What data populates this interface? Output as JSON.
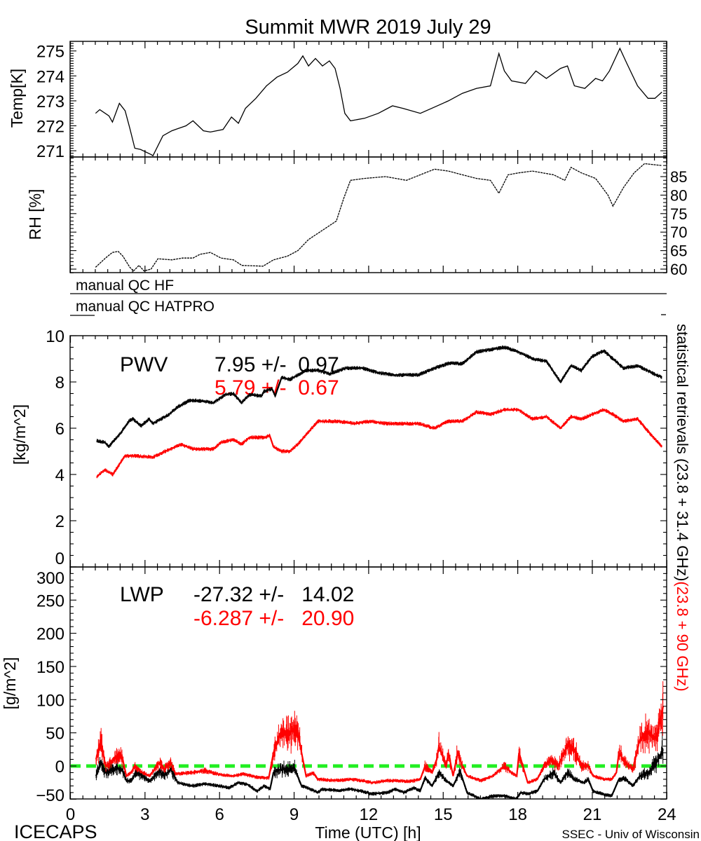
{
  "title": "Summit MWR 2019 July 29",
  "footer": {
    "left": "ICECAPS",
    "center": "Time (UTC) [h]",
    "right": "SSEC - Univ of Wisconsin"
  },
  "qc": {
    "hf": "manual QC HF",
    "hatpro": "manual QC HATPRO"
  },
  "right_label": {
    "black": "statistical retrievals (23.8 + 31.4 GHz)",
    "red": "(23.8 + 90 GHz)"
  },
  "colors": {
    "primary": "#000000",
    "secondary": "#ff0000",
    "zero_line": "#22ee22"
  },
  "x_axis": {
    "label": "Time (UTC) [h]",
    "range": [
      0,
      24
    ],
    "ticks": [
      0,
      3,
      6,
      9,
      12,
      15,
      18,
      21,
      24
    ]
  },
  "chart_data": [
    {
      "id": "temp",
      "type": "line",
      "ylabel": "Temp[K]",
      "ylim": [
        270.7,
        275.35
      ],
      "yticks": [
        271,
        272,
        273,
        274,
        275
      ],
      "series": [
        {
          "name": "Temperature",
          "color": "#000000",
          "x": [
            1.01,
            1.18,
            1.55,
            1.69,
            1.97,
            2.2,
            2.39,
            2.59,
            2.82,
            3.24,
            3.32,
            3.72,
            4.08,
            4.65,
            4.93,
            5.35,
            5.63,
            6.14,
            6.48,
            6.76,
            7.04,
            7.46,
            7.89,
            8.31,
            8.73,
            9.15,
            9.35,
            9.58,
            9.86,
            10.14,
            10.42,
            10.65,
            10.85,
            11.04,
            11.27,
            11.83,
            12.39,
            12.96,
            13.38,
            14.08,
            14.65,
            15.21,
            15.77,
            16.34,
            16.9,
            17.24,
            17.46,
            17.75,
            18.31,
            18.73,
            19.15,
            19.72,
            20.0,
            20.28,
            20.7,
            21.13,
            21.41,
            21.69,
            22.11,
            22.39,
            22.82,
            23.24,
            23.52,
            23.8
          ],
          "y": [
            272.5,
            272.65,
            272.4,
            272.15,
            272.9,
            272.6,
            271.9,
            271.1,
            271.05,
            270.85,
            270.8,
            271.6,
            271.8,
            272.0,
            272.2,
            271.8,
            271.75,
            271.85,
            272.35,
            272.1,
            272.7,
            273.1,
            273.6,
            273.95,
            274.15,
            274.5,
            274.8,
            274.4,
            274.7,
            274.4,
            274.6,
            274.3,
            273.5,
            272.5,
            272.2,
            272.3,
            272.5,
            272.8,
            272.7,
            272.5,
            272.75,
            273.0,
            273.3,
            273.5,
            273.6,
            274.9,
            274.2,
            273.8,
            273.7,
            274.2,
            273.9,
            274.3,
            274.4,
            273.6,
            273.5,
            273.9,
            273.8,
            274.2,
            275.1,
            274.5,
            273.6,
            273.1,
            273.1,
            273.35
          ]
        }
      ]
    },
    {
      "id": "rh",
      "type": "line",
      "ylabel": "RH [%]",
      "ylim": [
        59,
        90.2
      ],
      "yticks": [
        60,
        65,
        70,
        75,
        80,
        85
      ],
      "series": [
        {
          "name": "Relative humidity",
          "color": "#000000",
          "x": [
            1.01,
            1.41,
            1.69,
            1.92,
            2.11,
            2.39,
            2.54,
            2.76,
            2.96,
            3.24,
            3.52,
            4.08,
            4.51,
            4.93,
            5.21,
            5.63,
            6.06,
            6.56,
            6.9,
            7.75,
            8.17,
            8.73,
            9.15,
            9.58,
            10.14,
            10.7,
            10.99,
            11.27,
            11.83,
            12.68,
            13.52,
            14.08,
            14.65,
            15.21,
            15.77,
            16.34,
            16.9,
            17.24,
            17.61,
            18.03,
            18.59,
            19.44,
            19.89,
            20.14,
            20.56,
            21.13,
            21.63,
            21.83,
            22.25,
            22.68,
            23.1,
            23.8
          ],
          "y": [
            60.5,
            63,
            64.5,
            64.8,
            63.5,
            60.5,
            59.5,
            61,
            59.5,
            60,
            62.8,
            62.5,
            63,
            63,
            64,
            64.5,
            63,
            62.5,
            61,
            60.8,
            62.5,
            63.5,
            65,
            68,
            70.5,
            73,
            79,
            84,
            84.5,
            85,
            84,
            85.5,
            87,
            86.5,
            85.5,
            84.5,
            84,
            80.5,
            85.5,
            86,
            86.5,
            85.5,
            84,
            87.5,
            86,
            84.5,
            80,
            77,
            82,
            86,
            88.5,
            88
          ]
        }
      ]
    },
    {
      "id": "pwv",
      "type": "line",
      "ylabel": "[kg/m^2]",
      "ylim": [
        0,
        10
      ],
      "yticks": [
        0,
        2,
        4,
        6,
        8,
        10
      ],
      "annotation": {
        "label": "PWV",
        "stats": [
          {
            "text": "7.95 +/-  0.97",
            "color": "#000000"
          },
          {
            "text": "5.79 +/-  0.67",
            "color": "#ff0000"
          }
        ]
      },
      "series": [
        {
          "name": "23.8 + 31.4 GHz",
          "color": "#000000",
          "x": [
            1.06,
            1.38,
            1.54,
            2.03,
            2.35,
            2.51,
            2.84,
            3.16,
            3.32,
            3.97,
            4.29,
            4.78,
            5.1,
            5.75,
            6.23,
            6.56,
            6.88,
            7.2,
            7.69,
            7.79,
            8.11,
            8.24,
            8.5,
            8.82,
            9.15,
            9.47,
            9.96,
            10.44,
            11.09,
            11.74,
            12.38,
            13.03,
            14.0,
            14.65,
            15.21,
            15.77,
            16.34,
            16.9,
            17.46,
            18.03,
            18.59,
            19.15,
            19.72,
            20.14,
            20.56,
            20.99,
            21.46,
            21.83,
            22.25,
            22.82,
            23.38,
            23.8
          ],
          "y": [
            5.45,
            5.4,
            5.2,
            5.8,
            6.3,
            6.4,
            6.1,
            6.4,
            6.2,
            6.6,
            6.9,
            7.2,
            7.2,
            7.1,
            7.45,
            7.5,
            7.1,
            7.45,
            7.4,
            7.6,
            7.7,
            7.4,
            8.2,
            8.1,
            8.3,
            8.5,
            8.5,
            8.35,
            8.6,
            8.6,
            8.4,
            8.3,
            8.3,
            8.6,
            8.8,
            8.8,
            9.3,
            9.4,
            9.5,
            9.3,
            9.0,
            8.9,
            8.0,
            8.7,
            8.5,
            9.1,
            9.35,
            9.0,
            8.6,
            8.7,
            8.4,
            8.2
          ]
        },
        {
          "name": "23.8 + 90 GHz",
          "color": "#ff0000",
          "x": [
            1.06,
            1.38,
            1.7,
            2.19,
            2.67,
            3.32,
            3.81,
            4.45,
            4.94,
            5.75,
            6.07,
            6.56,
            6.88,
            7.2,
            7.85,
            8.01,
            8.17,
            8.5,
            8.82,
            9.15,
            9.31,
            9.63,
            9.96,
            10.77,
            11.41,
            12.06,
            12.71,
            13.35,
            14.0,
            14.65,
            15.21,
            15.77,
            16.34,
            16.9,
            17.46,
            18.03,
            18.59,
            19.15,
            19.72,
            20.14,
            20.56,
            20.99,
            21.46,
            21.83,
            22.25,
            22.82,
            23.38,
            23.8
          ],
          "y": [
            3.9,
            4.2,
            4.0,
            4.8,
            4.8,
            4.75,
            5.0,
            5.3,
            5.1,
            5.1,
            5.4,
            5.5,
            5.3,
            5.6,
            5.6,
            5.7,
            5.2,
            5.0,
            5.0,
            5.3,
            5.5,
            5.9,
            6.3,
            6.3,
            6.2,
            6.3,
            6.2,
            6.2,
            6.2,
            6.0,
            6.3,
            6.3,
            6.7,
            6.6,
            6.8,
            6.8,
            6.4,
            6.5,
            6.0,
            6.5,
            6.4,
            6.6,
            6.8,
            6.6,
            6.3,
            6.4,
            5.7,
            5.2
          ]
        }
      ]
    },
    {
      "id": "lwp",
      "type": "line",
      "ylabel": "[g/m^2]",
      "ylim": [
        -50,
        300
      ],
      "yticks": [
        -50,
        0,
        50,
        100,
        150,
        200,
        250,
        300
      ],
      "reference_line": 0,
      "annotation": {
        "label": "LWP",
        "stats": [
          {
            "text": "-27.32 +/-   14.02",
            "color": "#000000"
          },
          {
            "text": "-6.287 +/-   20.90",
            "color": "#ff0000"
          }
        ]
      },
      "series": [
        {
          "name": "23.8 + 31.4 GHz",
          "color": "#000000",
          "x": [
            1.03,
            1.22,
            1.41,
            1.88,
            2.07,
            2.25,
            2.44,
            2.63,
            2.82,
            3.19,
            3.57,
            3.76,
            4.04,
            4.32,
            4.88,
            5.45,
            6.01,
            6.38,
            6.76,
            7.14,
            7.51,
            7.79,
            8.03,
            8.17,
            8.45,
            8.83,
            9.01,
            9.3,
            9.48,
            9.95,
            10.14,
            10.8,
            11.27,
            11.74,
            12.11,
            12.77,
            13.05,
            13.43,
            13.8,
            14.08,
            14.27,
            14.55,
            14.83,
            15.12,
            15.4,
            15.68,
            15.96,
            16.52,
            16.99,
            17.46,
            17.93,
            18.12,
            18.4,
            18.78,
            19.06,
            19.44,
            19.72,
            20.0,
            20.28,
            20.66,
            20.84,
            21.03,
            21.5,
            21.78,
            22.07,
            22.35,
            22.63,
            22.91,
            23.28,
            23.57,
            23.85
          ],
          "y": [
            -15,
            5,
            -10,
            -3,
            -5,
            -22,
            -22,
            -10,
            -13,
            -23,
            -8,
            -15,
            -5,
            -25,
            -30,
            -27,
            -30,
            -33,
            -25,
            -28,
            -38,
            -30,
            -35,
            -10,
            -5,
            -5,
            -3,
            -30,
            -32,
            -40,
            -35,
            -37,
            -35,
            -38,
            -42,
            -40,
            -35,
            -40,
            -33,
            -37,
            -18,
            -30,
            -10,
            -22,
            -30,
            -8,
            -40,
            -50,
            -45,
            -45,
            -50,
            -40,
            -42,
            -38,
            -20,
            -10,
            -25,
            -10,
            -20,
            -25,
            -20,
            -38,
            -43,
            -45,
            -20,
            -20,
            -30,
            -15,
            -10,
            5,
            25
          ]
        },
        {
          "name": "23.8 + 90 GHz",
          "color": "#ff0000",
          "x": [
            1.03,
            1.22,
            1.41,
            1.6,
            1.88,
            2.07,
            2.25,
            2.44,
            2.58,
            2.82,
            3.19,
            3.57,
            3.76,
            4.04,
            4.23,
            4.88,
            5.45,
            6.01,
            6.57,
            6.95,
            7.51,
            7.98,
            8.17,
            8.45,
            8.83,
            9.11,
            9.3,
            9.48,
            9.77,
            9.95,
            10.8,
            11.27,
            11.74,
            12.11,
            12.77,
            13.71,
            14.08,
            14.27,
            14.55,
            14.74,
            14.83,
            15.12,
            15.21,
            15.4,
            15.58,
            15.77,
            15.96,
            16.52,
            16.99,
            17.46,
            17.74,
            17.96,
            18.05,
            18.4,
            18.78,
            19.06,
            19.34,
            19.62,
            20.0,
            20.28,
            20.56,
            20.84,
            21.03,
            21.5,
            21.78,
            21.97,
            22.07,
            22.35,
            22.63,
            22.91,
            23.28,
            23.57,
            23.85
          ],
          "y": [
            10,
            40,
            0,
            5,
            15,
            15,
            -15,
            -10,
            0,
            -8,
            -15,
            5,
            -5,
            5,
            -12,
            -10,
            -7,
            -13,
            -15,
            -12,
            -17,
            -18,
            20,
            50,
            50,
            60,
            20,
            -15,
            -10,
            -20,
            -22,
            -20,
            -22,
            -25,
            -22,
            -23,
            -20,
            0,
            -10,
            10,
            30,
            0,
            20,
            -15,
            20,
            0,
            -15,
            -22,
            -15,
            0,
            -10,
            -15,
            20,
            -25,
            -20,
            0,
            10,
            0,
            30,
            25,
            0,
            0,
            -15,
            -20,
            -20,
            -10,
            20,
            5,
            -5,
            40,
            50,
            40,
            90
          ]
        }
      ]
    }
  ]
}
